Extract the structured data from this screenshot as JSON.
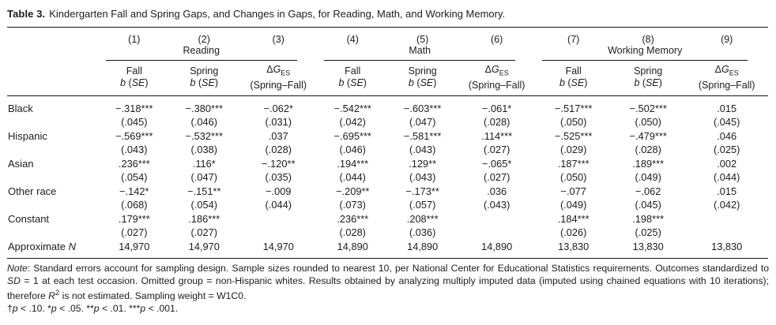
{
  "title": {
    "label": "Table 3.",
    "text": "Kindergarten Fall and Spring Gaps, and Changes in Gaps, for Reading, Math, and Working Memory."
  },
  "header": {
    "nums": [
      "(1)",
      "(2)",
      "(3)",
      "(4)",
      "(5)",
      "(6)",
      "(7)",
      "(8)",
      "(9)"
    ],
    "groups": [
      "Reading",
      "Math",
      "Working Memory"
    ],
    "fall": "Fall",
    "spring": "Spring",
    "bse": {
      "b": "b",
      "pre": " (",
      "se": "SE",
      "post": ")"
    },
    "dg": {
      "delta": "Δ",
      "g": "G",
      "sub": "ES",
      "line2": "(Spring–Fall)"
    }
  },
  "rows": [
    {
      "label": "Black",
      "b": [
        "−.318***",
        "−.380***",
        "−.062*",
        "−.542***",
        "−.603***",
        "−.061*",
        "−.517***",
        "−.502***",
        ".015"
      ],
      "se": [
        "(.045)",
        "(.046)",
        "(.031)",
        "(.042)",
        "(.047)",
        "(.028)",
        "(.050)",
        "(.050)",
        "(.045)"
      ]
    },
    {
      "label": "Hispanic",
      "b": [
        "−.569***",
        "−.532***",
        ".037",
        "−.695***",
        "−.581***",
        ".114***",
        "−.525***",
        "−.479***",
        ".046"
      ],
      "se": [
        "(.043)",
        "(.038)",
        "(.028)",
        "(.046)",
        "(.043)",
        "(.027)",
        "(.029)",
        "(.028)",
        "(.025)"
      ]
    },
    {
      "label": "Asian",
      "b": [
        ".236***",
        ".116*",
        "−.120**",
        ".194***",
        ".129**",
        "−.065*",
        ".187***",
        ".189***",
        ".002"
      ],
      "se": [
        "(.054)",
        "(.047)",
        "(.035)",
        "(.044)",
        "(.043)",
        "(.027)",
        "(.050)",
        "(.049)",
        "(.044)"
      ]
    },
    {
      "label": "Other race",
      "b": [
        "−.142*",
        "−.151**",
        "−.009",
        "−.209**",
        "−.173**",
        ".036",
        "−.077",
        "−.062",
        ".015"
      ],
      "se": [
        "(.068)",
        "(.054)",
        "(.044)",
        "(.073)",
        "(.057)",
        "(.043)",
        "(.049)",
        "(.045)",
        "(.042)"
      ]
    },
    {
      "label": "Constant",
      "b": [
        ".179***",
        ".186***",
        "",
        ".236***",
        ".208***",
        "",
        ".184***",
        ".198***",
        ""
      ],
      "se": [
        "(.027)",
        "(.027)",
        "",
        "(.028)",
        "(.036)",
        "",
        "(.026)",
        "(.025)",
        ""
      ]
    }
  ],
  "nrow": {
    "label_pre": "Approximate ",
    "label_n": "N",
    "values": [
      "14,970",
      "14,970",
      "14,970",
      "14,890",
      "14,890",
      "14,890",
      "13,830",
      "13,830",
      "13,830"
    ]
  },
  "note": {
    "word": "Note",
    "colon": ": ",
    "body1": "Standard errors account for sampling design. Sample sizes rounded to nearest 10, per National Center for Educational Statistics requirements. Outcomes standardized to ",
    "sd": "SD",
    "body2": " = 1 at each test occasion. Omitted group = non-Hispanic whites. Results obtained by analyzing multiply imputed data (imputed using chained equations with 10 iterations); therefore ",
    "r": "R",
    "rsup": "2",
    "body3": " is not estimated. Sampling weight = W1C0."
  },
  "sig": {
    "s1": "†",
    "p": "p",
    "s2": " < .10. *",
    "s3": " < .05. **",
    "s4": " < .01. ***",
    "s5": " < .001."
  },
  "colors": {
    "text": "#1c1c1c",
    "rule": "#111111",
    "background": "#ffffff"
  }
}
